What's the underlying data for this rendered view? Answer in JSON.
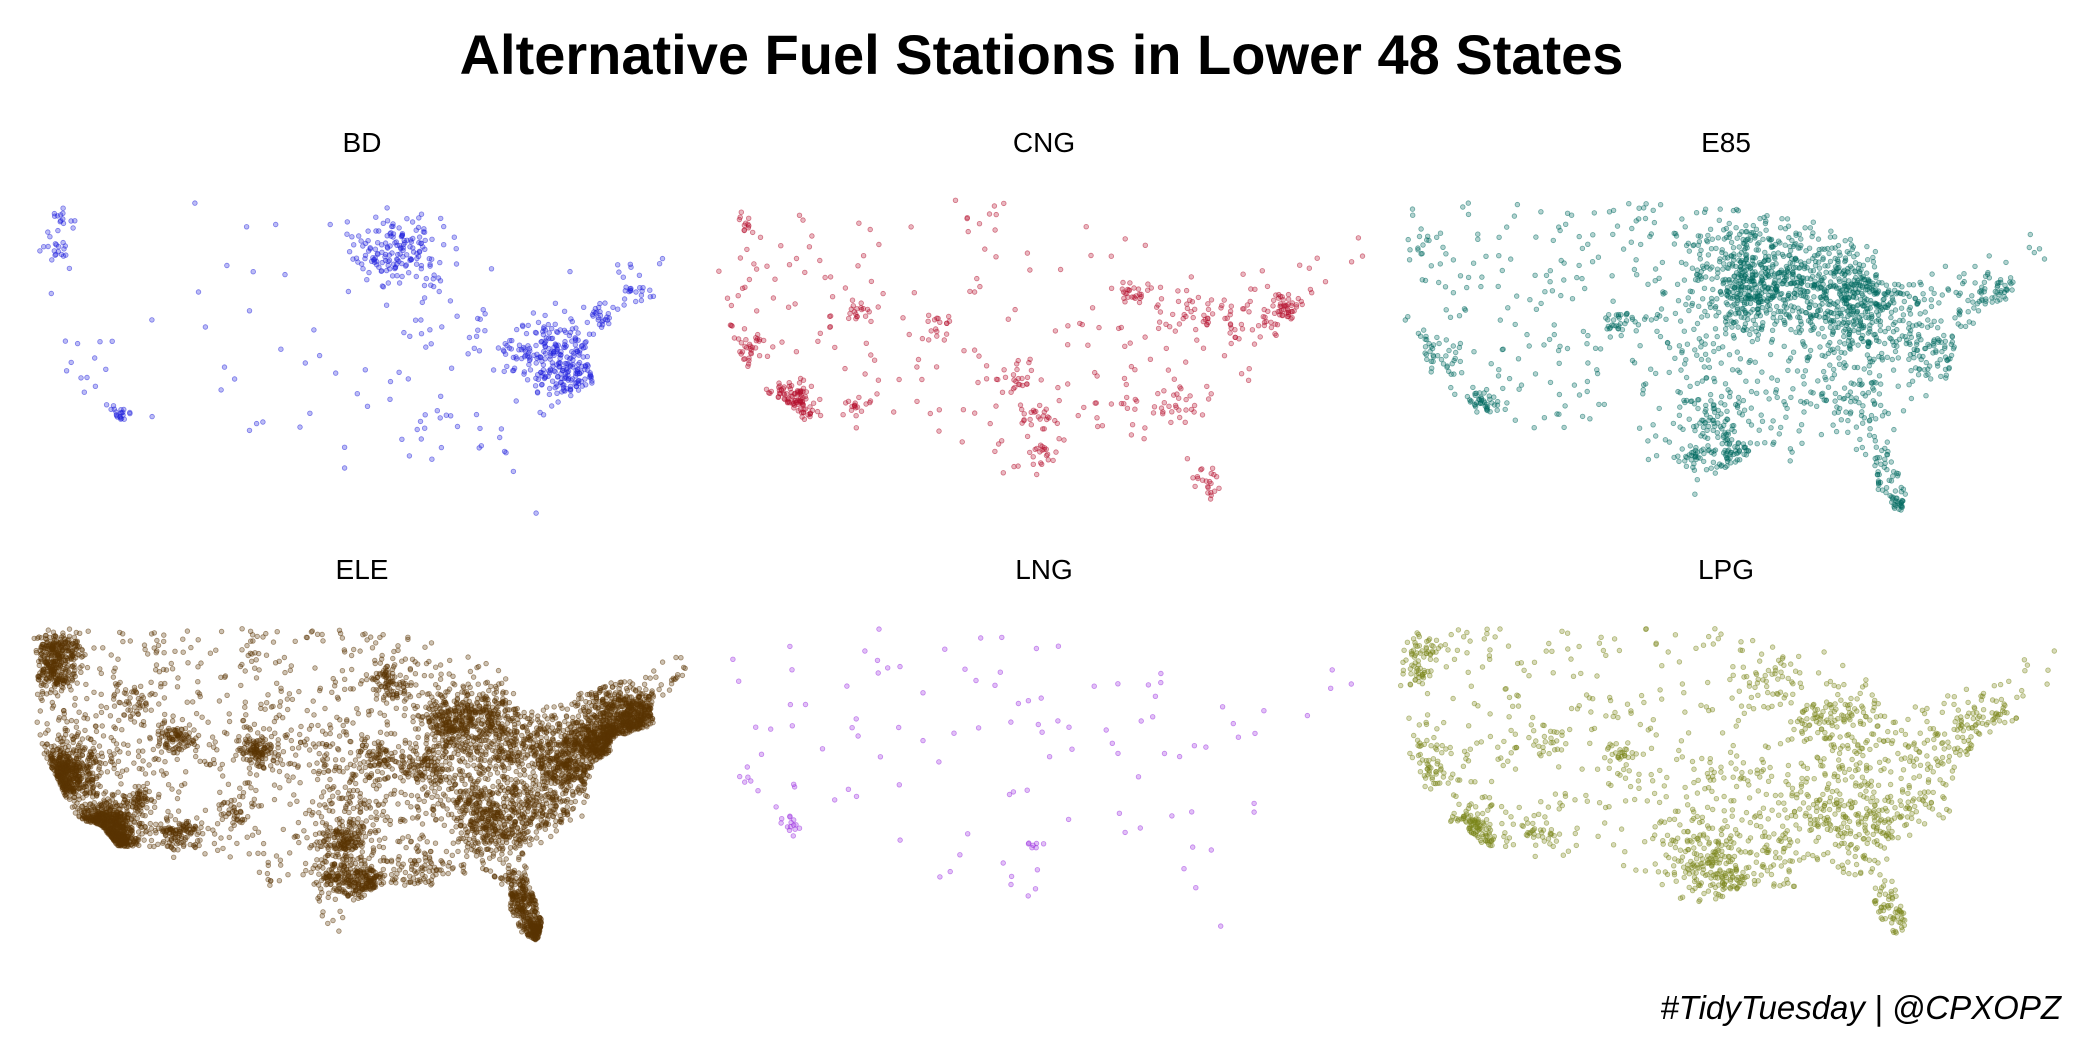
{
  "title": "Alternative Fuel Stations in Lower 48 States",
  "caption": "#TidyTuesday | @CPXOPZ",
  "chart_data": {
    "type": "scatter",
    "title": "Alternative Fuel Stations in Lower 48 States",
    "xlabel": "",
    "ylabel": "",
    "grid": false,
    "legend": "none",
    "facet_layout": "3 columns x 2 rows",
    "x_axis": "longitude",
    "y_axis": "latitude",
    "xlim": [
      -125,
      -66.5
    ],
    "ylim": [
      24.5,
      49.5
    ],
    "point_alpha": 0.3,
    "panels": [
      {
        "label": "BD",
        "color": "#2222dd",
        "clusters": [
          {
            "lon": -122.3,
            "lat": 47.6,
            "count": 14,
            "spread": 0.5
          },
          {
            "lon": -122.6,
            "lat": 45.5,
            "count": 18,
            "spread": 0.6
          },
          {
            "lon": -117.2,
            "lat": 32.8,
            "count": 20,
            "spread": 0.5
          },
          {
            "lon": -120.5,
            "lat": 35.2,
            "count": 10,
            "spread": 1.5
          },
          {
            "lon": -92.8,
            "lat": 45.3,
            "count": 160,
            "spread": 1.6
          },
          {
            "lon": -89.2,
            "lat": 42.6,
            "count": 10,
            "spread": 0.7
          },
          {
            "lon": -78.8,
            "lat": 37.2,
            "count": 230,
            "spread": 2.0
          },
          {
            "lon": -74.6,
            "lat": 40.4,
            "count": 25,
            "spread": 0.7
          },
          {
            "lon": -71.5,
            "lat": 42.2,
            "count": 25,
            "spread": 1.0
          },
          {
            "lon": -76.0,
            "lat": 34.8,
            "count": 45,
            "spread": 1.5
          },
          {
            "lon": -88.0,
            "lat": 38.0,
            "count": 20,
            "spread": 2.0
          },
          {
            "lon": -90.5,
            "lat": 31.5,
            "count": 15,
            "spread": 2.0
          },
          {
            "lon": -100.0,
            "lat": 34.0,
            "count": 12,
            "spread": 4.0
          },
          {
            "lon": -85.0,
            "lat": 30.5,
            "count": 10,
            "spread": 2.0
          }
        ],
        "scatter_count": 40,
        "outliers": [
          {
            "lon": -80.5,
            "lat": 25.4
          }
        ]
      },
      {
        "label": "CNG",
        "color": "#b5112e",
        "clusters": [
          {
            "lon": -122.2,
            "lat": 47.4,
            "count": 10,
            "spread": 0.5
          },
          {
            "lon": -122.3,
            "lat": 37.8,
            "count": 35,
            "spread": 1.0
          },
          {
            "lon": -118.2,
            "lat": 34.0,
            "count": 80,
            "spread": 0.9
          },
          {
            "lon": -117.0,
            "lat": 32.9,
            "count": 15,
            "spread": 0.4
          },
          {
            "lon": -112.0,
            "lat": 40.7,
            "count": 20,
            "spread": 0.6
          },
          {
            "lon": -112.0,
            "lat": 33.5,
            "count": 15,
            "spread": 0.5
          },
          {
            "lon": -104.9,
            "lat": 39.7,
            "count": 15,
            "spread": 0.6
          },
          {
            "lon": -97.5,
            "lat": 35.5,
            "count": 25,
            "spread": 0.9
          },
          {
            "lon": -96.8,
            "lat": 32.8,
            "count": 25,
            "spread": 0.9
          },
          {
            "lon": -95.4,
            "lat": 29.8,
            "count": 20,
            "spread": 0.8
          },
          {
            "lon": -88.0,
            "lat": 41.9,
            "count": 25,
            "spread": 0.7
          },
          {
            "lon": -83.0,
            "lat": 40.0,
            "count": 30,
            "spread": 1.3
          },
          {
            "lon": -77.0,
            "lat": 40.5,
            "count": 45,
            "spread": 1.5
          },
          {
            "lon": -74.0,
            "lat": 40.8,
            "count": 35,
            "spread": 0.8
          },
          {
            "lon": -84.4,
            "lat": 33.8,
            "count": 20,
            "spread": 0.8
          },
          {
            "lon": -81.5,
            "lat": 28.0,
            "count": 20,
            "spread": 1.2
          },
          {
            "lon": -90.0,
            "lat": 35.0,
            "count": 25,
            "spread": 2.5
          }
        ],
        "scatter_count": 200,
        "outliers": [
          {
            "lon": -103.5,
            "lat": 49.1
          }
        ]
      },
      {
        "label": "E85",
        "color": "#006a60",
        "clusters": [
          {
            "lon": -122.5,
            "lat": 45.7,
            "count": 10,
            "spread": 0.6
          },
          {
            "lon": -121.8,
            "lat": 37.6,
            "count": 35,
            "spread": 1.0
          },
          {
            "lon": -117.8,
            "lat": 33.6,
            "count": 40,
            "spread": 0.8
          },
          {
            "lon": -104.9,
            "lat": 39.8,
            "count": 30,
            "spread": 0.6
          },
          {
            "lon": -93.5,
            "lat": 44.5,
            "count": 300,
            "spread": 2.8
          },
          {
            "lon": -93.5,
            "lat": 41.8,
            "count": 150,
            "spread": 1.6
          },
          {
            "lon": -88.5,
            "lat": 42.5,
            "count": 200,
            "spread": 2.2
          },
          {
            "lon": -84.5,
            "lat": 42.5,
            "count": 180,
            "spread": 1.7
          },
          {
            "lon": -84.5,
            "lat": 39.5,
            "count": 140,
            "spread": 2.0
          },
          {
            "lon": -80.0,
            "lat": 40.5,
            "count": 80,
            "spread": 2.0
          },
          {
            "lon": -97.0,
            "lat": 32.8,
            "count": 70,
            "spread": 1.2
          },
          {
            "lon": -95.4,
            "lat": 29.9,
            "count": 60,
            "spread": 0.9
          },
          {
            "lon": -98.5,
            "lat": 29.6,
            "count": 30,
            "spread": 0.6
          },
          {
            "lon": -84.4,
            "lat": 33.8,
            "count": 50,
            "spread": 1.3
          },
          {
            "lon": -81.5,
            "lat": 28.5,
            "count": 40,
            "spread": 1.5
          },
          {
            "lon": -80.3,
            "lat": 26.2,
            "count": 25,
            "spread": 0.5
          },
          {
            "lon": -77.5,
            "lat": 37.5,
            "count": 70,
            "spread": 1.5
          },
          {
            "lon": -73.8,
            "lat": 41.5,
            "count": 40,
            "spread": 1.2
          },
          {
            "lon": -71.5,
            "lat": 42.5,
            "count": 20,
            "spread": 0.8
          },
          {
            "lon": -97.0,
            "lat": 38.5,
            "count": 60,
            "spread": 2.0
          },
          {
            "lon": -90.0,
            "lat": 35.0,
            "count": 60,
            "spread": 2.5
          }
        ],
        "scatter_count": 400,
        "outliers": []
      },
      {
        "label": "ELE",
        "color": "#5b3403",
        "clusters": [
          {
            "lon": -122.4,
            "lat": 37.7,
            "count": 400,
            "spread": 1.2
          },
          {
            "lon": -118.2,
            "lat": 34.1,
            "count": 500,
            "spread": 1.1
          },
          {
            "lon": -117.1,
            "lat": 32.8,
            "count": 150,
            "spread": 0.5
          },
          {
            "lon": -122.5,
            "lat": 47.3,
            "count": 200,
            "spread": 0.9
          },
          {
            "lon": -122.7,
            "lat": 45.5,
            "count": 150,
            "spread": 0.8
          },
          {
            "lon": -121.0,
            "lat": 39.5,
            "count": 120,
            "spread": 1.5
          },
          {
            "lon": -112.0,
            "lat": 33.5,
            "count": 120,
            "spread": 0.8
          },
          {
            "lon": -111.9,
            "lat": 40.7,
            "count": 100,
            "spread": 0.8
          },
          {
            "lon": -104.9,
            "lat": 39.7,
            "count": 130,
            "spread": 0.8
          },
          {
            "lon": -97.3,
            "lat": 32.8,
            "count": 180,
            "spread": 1.0
          },
          {
            "lon": -95.4,
            "lat": 29.8,
            "count": 150,
            "spread": 0.8
          },
          {
            "lon": -97.8,
            "lat": 30.2,
            "count": 110,
            "spread": 0.8
          },
          {
            "lon": -93.3,
            "lat": 44.9,
            "count": 100,
            "spread": 0.9
          },
          {
            "lon": -88.0,
            "lat": 42.0,
            "count": 250,
            "spread": 1.2
          },
          {
            "lon": -84.5,
            "lat": 42.5,
            "count": 200,
            "spread": 1.5
          },
          {
            "lon": -84.0,
            "lat": 39.8,
            "count": 200,
            "spread": 1.8
          },
          {
            "lon": -80.0,
            "lat": 40.4,
            "count": 150,
            "spread": 1.5
          },
          {
            "lon": -84.4,
            "lat": 33.8,
            "count": 250,
            "spread": 1.3
          },
          {
            "lon": -80.8,
            "lat": 35.5,
            "count": 220,
            "spread": 1.5
          },
          {
            "lon": -77.3,
            "lat": 38.8,
            "count": 350,
            "spread": 1.4
          },
          {
            "lon": -74.5,
            "lat": 40.6,
            "count": 400,
            "spread": 1.2
          },
          {
            "lon": -71.8,
            "lat": 42.2,
            "count": 350,
            "spread": 1.2
          },
          {
            "lon": -73.5,
            "lat": 43.5,
            "count": 150,
            "spread": 1.5
          },
          {
            "lon": -81.5,
            "lat": 28.3,
            "count": 250,
            "spread": 1.5
          },
          {
            "lon": -80.3,
            "lat": 26.2,
            "count": 150,
            "spread": 0.5
          },
          {
            "lon": -90.2,
            "lat": 38.6,
            "count": 120,
            "spread": 1.2
          },
          {
            "lon": -86.5,
            "lat": 36.0,
            "count": 150,
            "spread": 1.5
          },
          {
            "lon": -90.0,
            "lat": 30.5,
            "count": 80,
            "spread": 1.2
          },
          {
            "lon": -94.6,
            "lat": 39.1,
            "count": 80,
            "spread": 1.0
          },
          {
            "lon": -96.0,
            "lat": 36.0,
            "count": 80,
            "spread": 1.5
          },
          {
            "lon": -116.0,
            "lat": 43.6,
            "count": 40,
            "spread": 1.0
          },
          {
            "lon": -115.1,
            "lat": 36.1,
            "count": 60,
            "spread": 0.6
          },
          {
            "lon": -106.6,
            "lat": 35.1,
            "count": 40,
            "spread": 0.7
          },
          {
            "lon": -99.0,
            "lat": 40.0,
            "count": 60,
            "spread": 2.5
          }
        ],
        "scatter_count": 1000,
        "outliers": []
      },
      {
        "label": "LNG",
        "color": "#9b30e0",
        "clusters": [
          {
            "lon": -118.2,
            "lat": 34.0,
            "count": 12,
            "spread": 0.6
          },
          {
            "lon": -121.8,
            "lat": 37.7,
            "count": 5,
            "spread": 0.5
          },
          {
            "lon": -96.8,
            "lat": 32.8,
            "count": 6,
            "spread": 0.4
          }
        ],
        "scatter_count": 110,
        "outliers": []
      },
      {
        "label": "LPG",
        "color": "#7a861a",
        "clusters": [
          {
            "lon": -122.3,
            "lat": 47.3,
            "count": 40,
            "spread": 0.8
          },
          {
            "lon": -122.6,
            "lat": 45.5,
            "count": 30,
            "spread": 0.8
          },
          {
            "lon": -121.5,
            "lat": 38.5,
            "count": 60,
            "spread": 1.4
          },
          {
            "lon": -118.2,
            "lat": 34.1,
            "count": 80,
            "spread": 1.0
          },
          {
            "lon": -116.8,
            "lat": 33.0,
            "count": 25,
            "spread": 0.6
          },
          {
            "lon": -112.0,
            "lat": 33.5,
            "count": 30,
            "spread": 0.8
          },
          {
            "lon": -111.9,
            "lat": 40.7,
            "count": 20,
            "spread": 0.8
          },
          {
            "lon": -104.9,
            "lat": 39.7,
            "count": 30,
            "spread": 0.8
          },
          {
            "lon": -97.5,
            "lat": 31.5,
            "count": 150,
            "spread": 1.8
          },
          {
            "lon": -95.4,
            "lat": 29.8,
            "count": 50,
            "spread": 0.8
          },
          {
            "lon": -93.0,
            "lat": 44.8,
            "count": 40,
            "spread": 1.2
          },
          {
            "lon": -88.0,
            "lat": 42.0,
            "count": 50,
            "spread": 1.2
          },
          {
            "lon": -84.5,
            "lat": 42.5,
            "count": 50,
            "spread": 1.5
          },
          {
            "lon": -84.5,
            "lat": 39.5,
            "count": 60,
            "spread": 1.8
          },
          {
            "lon": -86.5,
            "lat": 35.5,
            "count": 90,
            "spread": 2.0
          },
          {
            "lon": -84.0,
            "lat": 33.5,
            "count": 80,
            "spread": 1.6
          },
          {
            "lon": -80.5,
            "lat": 35.5,
            "count": 60,
            "spread": 1.5
          },
          {
            "lon": -77.5,
            "lat": 39.5,
            "count": 50,
            "spread": 1.5
          },
          {
            "lon": -74.5,
            "lat": 41.0,
            "count": 40,
            "spread": 1.2
          },
          {
            "lon": -72.0,
            "lat": 42.5,
            "count": 35,
            "spread": 1.5
          },
          {
            "lon": -81.7,
            "lat": 28.3,
            "count": 40,
            "spread": 1.2
          },
          {
            "lon": -80.4,
            "lat": 26.5,
            "count": 15,
            "spread": 0.5
          },
          {
            "lon": -91.0,
            "lat": 32.5,
            "count": 60,
            "spread": 2.0
          },
          {
            "lon": -95.0,
            "lat": 37.5,
            "count": 50,
            "spread": 2.2
          }
        ],
        "scatter_count": 500,
        "outliers": [
          {
            "lon": -67.0,
            "lat": 47.3
          }
        ]
      }
    ]
  }
}
